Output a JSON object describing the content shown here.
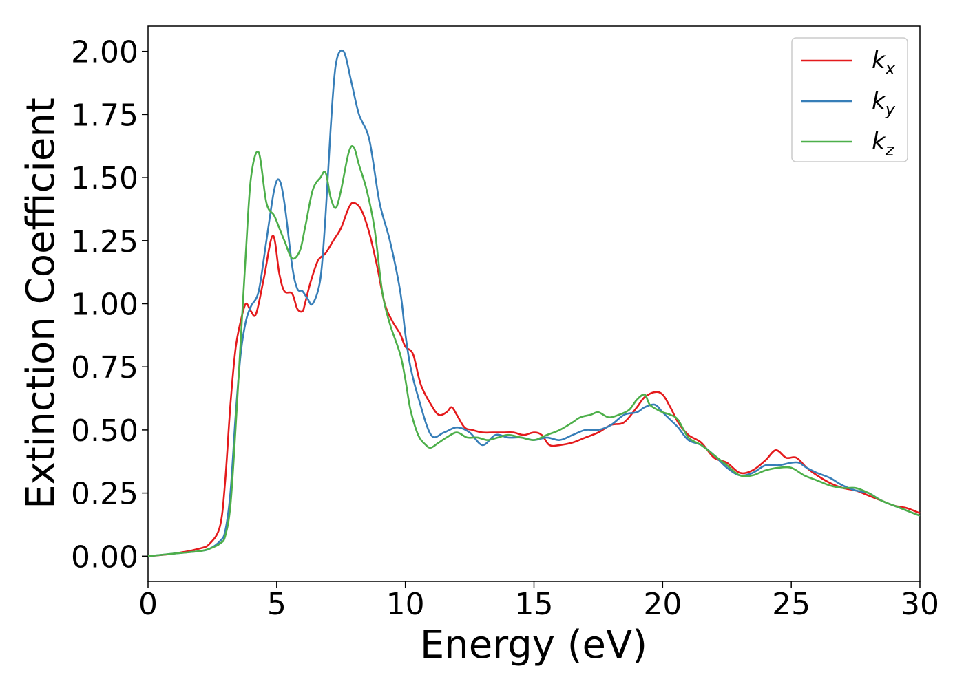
{
  "chart_data": {
    "type": "line",
    "title": "",
    "xlabel": "Energy (eV)",
    "ylabel": "Extinction Coefficient",
    "xlim": [
      0,
      30
    ],
    "ylim": [
      -0.1,
      2.1
    ],
    "xticks": [
      0,
      5,
      10,
      15,
      20,
      25,
      30
    ],
    "xtick_labels": [
      "0",
      "5",
      "10",
      "15",
      "20",
      "25",
      "30"
    ],
    "yticks": [
      0,
      0.25,
      0.5,
      0.75,
      1.0,
      1.25,
      1.5,
      1.75,
      2.0
    ],
    "ytick_labels": [
      "0.00",
      "0.25",
      "0.50",
      "0.75",
      "1.00",
      "1.25",
      "1.50",
      "1.75",
      "2.00"
    ],
    "grid": false,
    "legend_position": "top-right",
    "series": [
      {
        "name": "k",
        "subscript": "x",
        "color": "#e41a1c",
        "x": [
          0,
          1,
          2,
          2.4,
          2.8,
          3.0,
          3.2,
          3.4,
          3.6,
          3.8,
          4.0,
          4.2,
          4.5,
          4.85,
          5.1,
          5.3,
          5.6,
          5.8,
          6.0,
          6.1,
          6.3,
          6.6,
          6.9,
          7.2,
          7.5,
          7.8,
          8.0,
          8.3,
          8.6,
          8.9,
          9.2,
          9.5,
          9.8,
          10.0,
          10.3,
          10.6,
          11.0,
          11.3,
          11.6,
          11.8,
          12.0,
          12.3,
          12.6,
          13.0,
          13.4,
          13.8,
          14.2,
          14.6,
          15.0,
          15.3,
          15.6,
          16.0,
          16.5,
          17.0,
          17.5,
          18.0,
          18.5,
          19.0,
          19.3,
          19.7,
          20.0,
          20.3,
          20.6,
          21.0,
          21.5,
          22.0,
          22.5,
          23.0,
          23.5,
          24.0,
          24.4,
          24.8,
          25.2,
          25.6,
          26.0,
          26.5,
          27.0,
          27.5,
          28.0,
          28.5,
          29.0,
          29.5,
          30.0
        ],
        "y": [
          0.0,
          0.01,
          0.03,
          0.05,
          0.12,
          0.3,
          0.6,
          0.82,
          0.93,
          1.0,
          0.97,
          0.96,
          1.1,
          1.27,
          1.12,
          1.05,
          1.04,
          0.98,
          0.97,
          1.0,
          1.08,
          1.17,
          1.2,
          1.25,
          1.3,
          1.38,
          1.4,
          1.37,
          1.28,
          1.15,
          1.0,
          0.93,
          0.88,
          0.83,
          0.8,
          0.68,
          0.6,
          0.56,
          0.57,
          0.59,
          0.56,
          0.51,
          0.5,
          0.49,
          0.49,
          0.49,
          0.49,
          0.48,
          0.49,
          0.48,
          0.44,
          0.44,
          0.45,
          0.47,
          0.49,
          0.52,
          0.53,
          0.59,
          0.63,
          0.65,
          0.64,
          0.59,
          0.53,
          0.48,
          0.45,
          0.39,
          0.37,
          0.33,
          0.34,
          0.38,
          0.42,
          0.39,
          0.39,
          0.35,
          0.32,
          0.29,
          0.27,
          0.26,
          0.24,
          0.22,
          0.2,
          0.19,
          0.17
        ]
      },
      {
        "name": "k",
        "subscript": "y",
        "color": "#377eb8",
        "x": [
          0,
          1,
          2,
          2.4,
          2.8,
          3.0,
          3.2,
          3.4,
          3.6,
          3.8,
          4.0,
          4.3,
          4.6,
          4.9,
          5.1,
          5.3,
          5.6,
          5.8,
          6.0,
          6.2,
          6.4,
          6.7,
          6.9,
          7.1,
          7.3,
          7.6,
          7.9,
          8.2,
          8.6,
          9.0,
          9.4,
          9.8,
          10.0,
          10.2,
          10.5,
          11.0,
          11.5,
          12.0,
          12.5,
          13.0,
          13.5,
          14.0,
          14.5,
          15.0,
          15.5,
          16.0,
          16.5,
          17.0,
          17.5,
          18.0,
          18.5,
          19.0,
          19.3,
          19.7,
          20.0,
          20.3,
          20.6,
          21.0,
          21.5,
          22.0,
          22.5,
          23.0,
          23.5,
          24.0,
          24.5,
          25.0,
          25.3,
          25.6,
          26.0,
          26.5,
          27.0,
          27.5,
          28.0,
          28.5,
          29.0,
          29.5,
          30.0
        ],
        "y": [
          0.0,
          0.01,
          0.02,
          0.03,
          0.06,
          0.1,
          0.25,
          0.55,
          0.8,
          0.93,
          0.99,
          1.05,
          1.25,
          1.45,
          1.49,
          1.4,
          1.15,
          1.06,
          1.05,
          1.02,
          1.0,
          1.1,
          1.35,
          1.7,
          1.95,
          2.0,
          1.88,
          1.75,
          1.65,
          1.4,
          1.25,
          1.05,
          0.88,
          0.75,
          0.63,
          0.48,
          0.49,
          0.51,
          0.49,
          0.44,
          0.48,
          0.47,
          0.47,
          0.46,
          0.47,
          0.46,
          0.48,
          0.5,
          0.5,
          0.52,
          0.56,
          0.57,
          0.59,
          0.6,
          0.57,
          0.54,
          0.51,
          0.46,
          0.44,
          0.4,
          0.35,
          0.32,
          0.33,
          0.36,
          0.36,
          0.37,
          0.37,
          0.35,
          0.33,
          0.31,
          0.28,
          0.26,
          0.25,
          0.22,
          0.2,
          0.18,
          0.16
        ]
      },
      {
        "name": "k",
        "subscript": "z",
        "color": "#4daf4a",
        "x": [
          0,
          1,
          2,
          2.4,
          2.8,
          3.0,
          3.2,
          3.4,
          3.6,
          3.8,
          4.0,
          4.3,
          4.6,
          4.9,
          5.1,
          5.3,
          5.6,
          5.9,
          6.1,
          6.4,
          6.7,
          6.9,
          7.1,
          7.3,
          7.5,
          7.8,
          8.0,
          8.2,
          8.5,
          8.8,
          9.1,
          9.4,
          9.8,
          10.0,
          10.2,
          10.5,
          10.8,
          11.0,
          11.3,
          11.6,
          12.0,
          12.4,
          12.8,
          13.2,
          13.6,
          14.0,
          14.5,
          15.0,
          15.5,
          16.0,
          16.5,
          16.8,
          17.2,
          17.5,
          17.9,
          18.3,
          18.7,
          19.0,
          19.3,
          19.5,
          19.8,
          20.0,
          20.3,
          20.6,
          21.0,
          21.5,
          22.0,
          22.5,
          23.0,
          23.5,
          24.0,
          24.5,
          25.0,
          25.5,
          26.0,
          26.5,
          27.0,
          27.5,
          28.0,
          28.5,
          29.0,
          29.5,
          30.0
        ],
        "y": [
          0.0,
          0.01,
          0.02,
          0.03,
          0.05,
          0.08,
          0.2,
          0.5,
          0.85,
          1.2,
          1.5,
          1.6,
          1.4,
          1.35,
          1.3,
          1.25,
          1.18,
          1.21,
          1.3,
          1.45,
          1.5,
          1.52,
          1.42,
          1.38,
          1.45,
          1.6,
          1.62,
          1.55,
          1.45,
          1.3,
          1.05,
          0.92,
          0.8,
          0.7,
          0.58,
          0.48,
          0.44,
          0.43,
          0.45,
          0.47,
          0.49,
          0.47,
          0.47,
          0.46,
          0.47,
          0.48,
          0.47,
          0.46,
          0.48,
          0.5,
          0.53,
          0.55,
          0.56,
          0.57,
          0.55,
          0.56,
          0.58,
          0.62,
          0.64,
          0.6,
          0.58,
          0.57,
          0.56,
          0.54,
          0.47,
          0.44,
          0.4,
          0.36,
          0.32,
          0.32,
          0.34,
          0.35,
          0.35,
          0.32,
          0.3,
          0.28,
          0.27,
          0.27,
          0.25,
          0.22,
          0.2,
          0.18,
          0.16
        ]
      }
    ]
  }
}
